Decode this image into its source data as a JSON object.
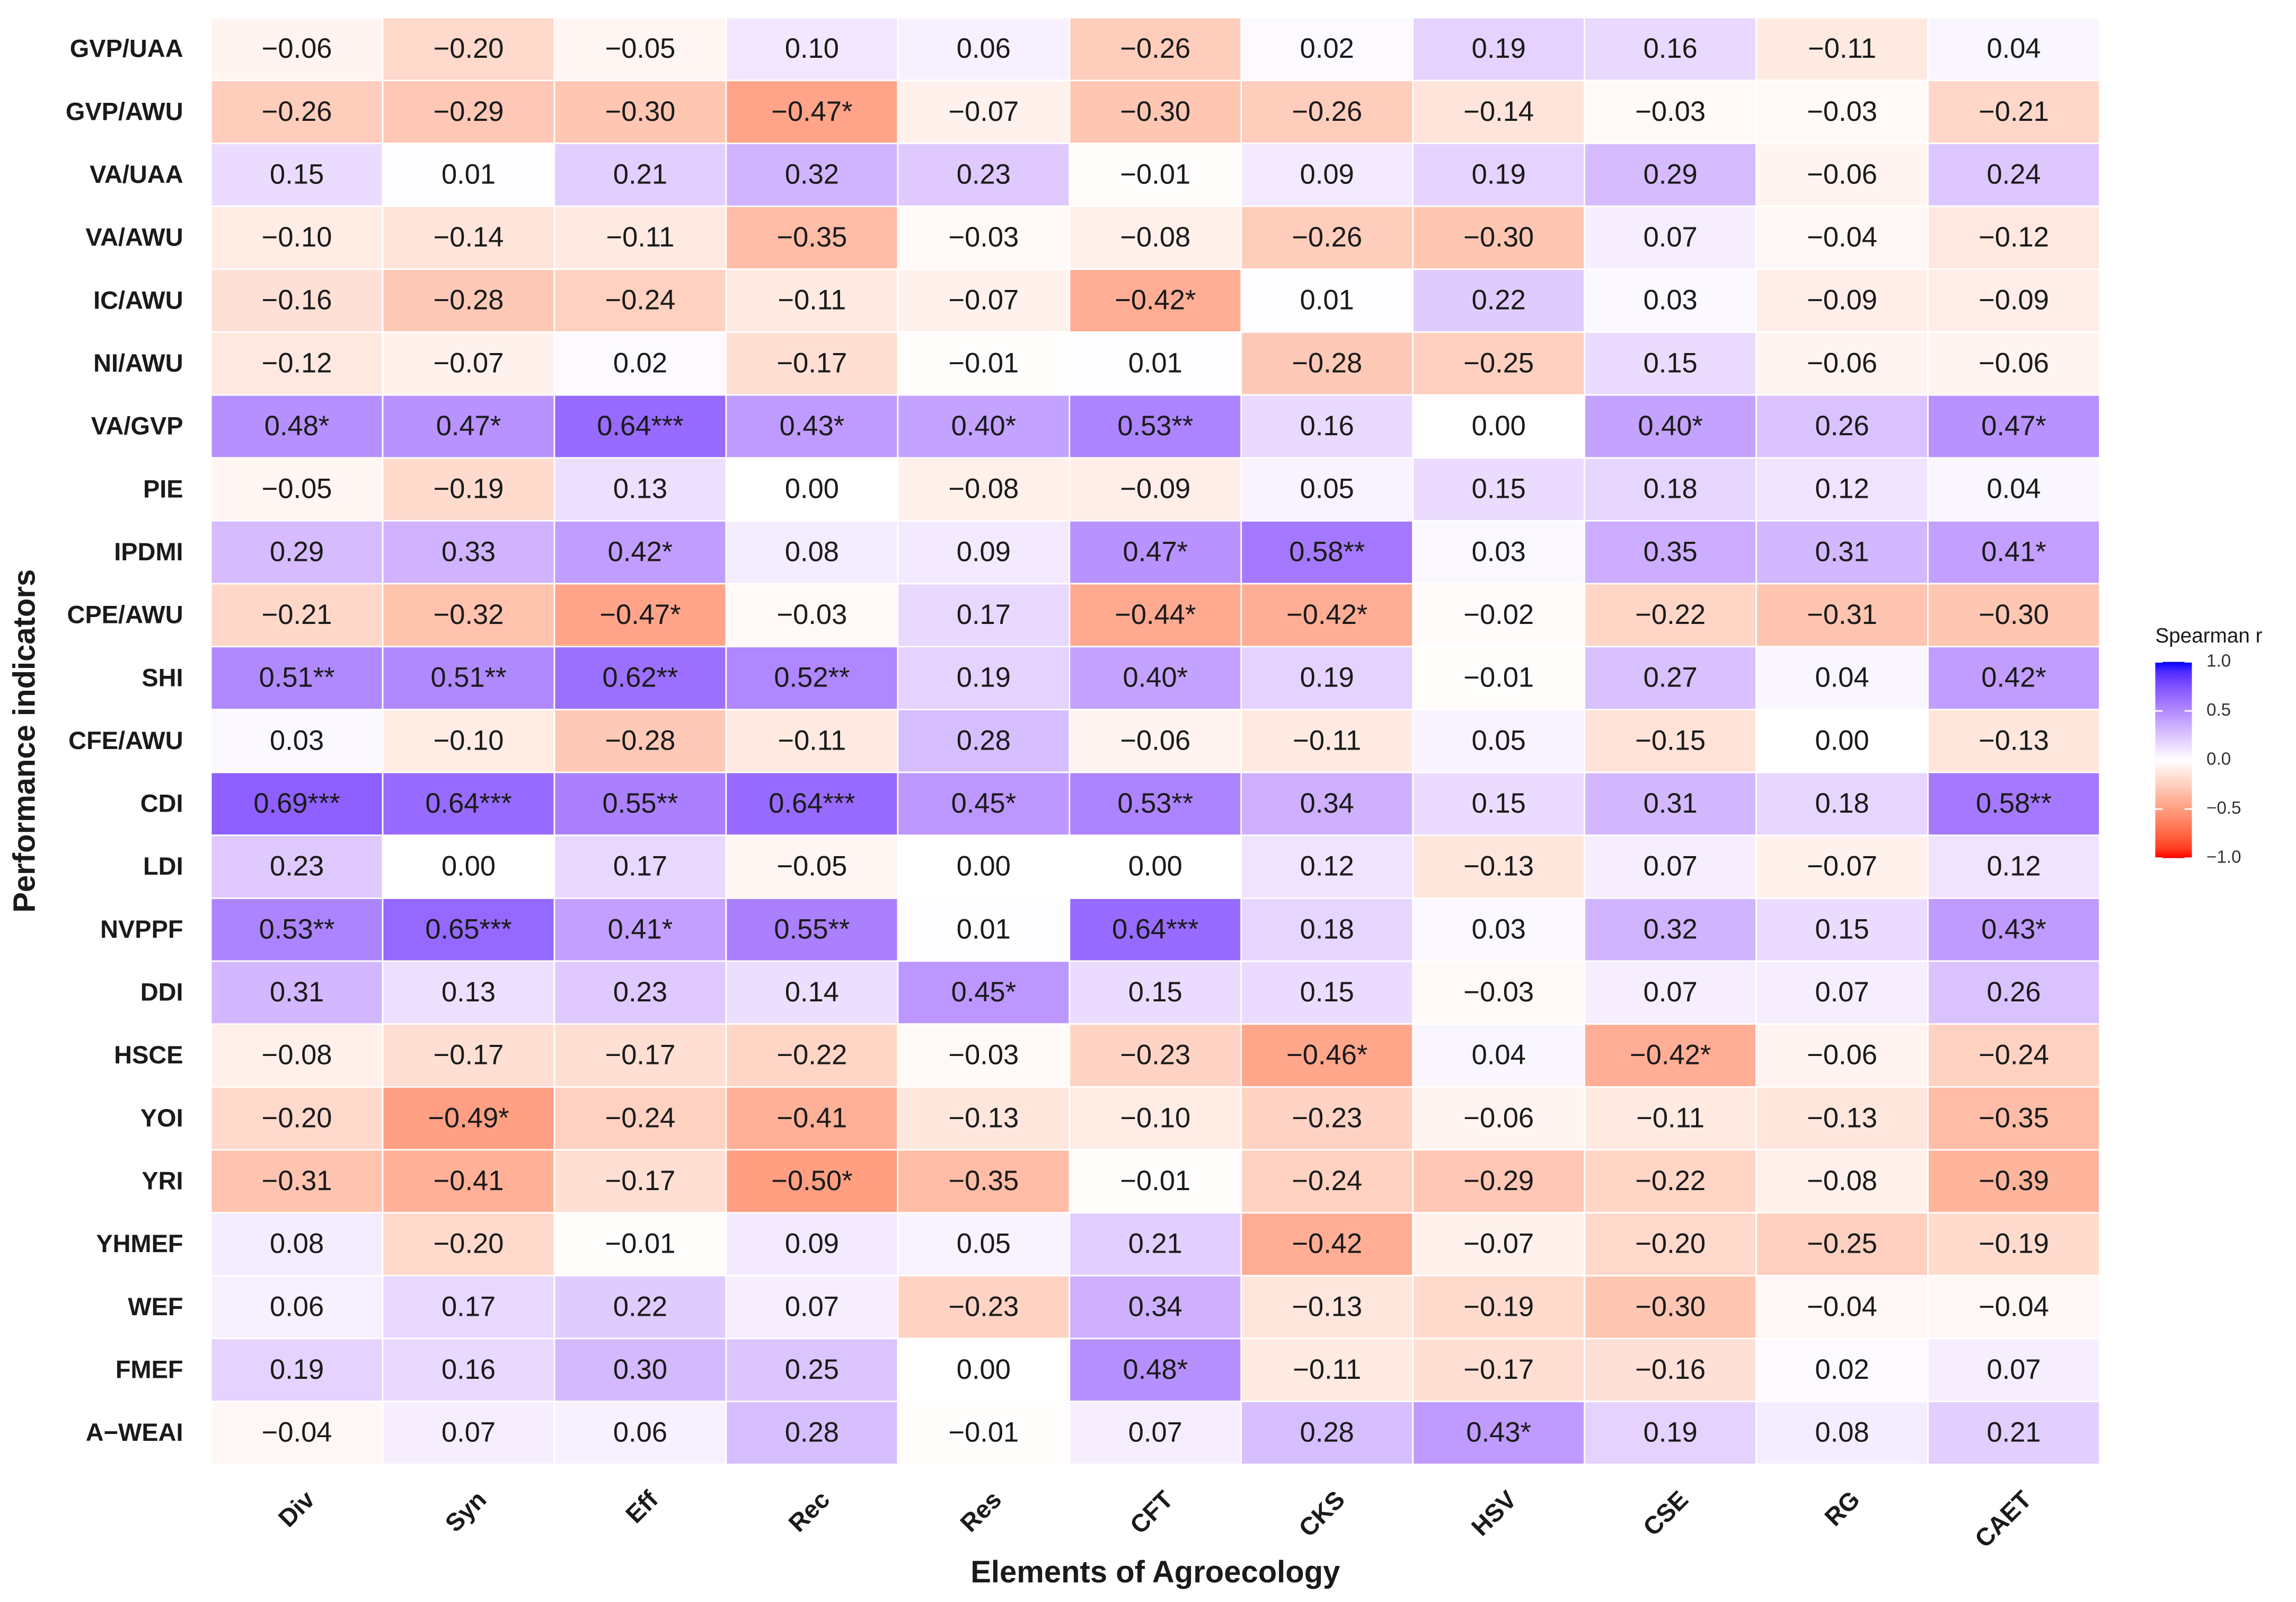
{
  "chart_data": {
    "type": "heatmap",
    "x_label": "Elements of Agroecology",
    "y_label": "Performance indicators",
    "x_categories": [
      "Div",
      "Syn",
      "Eff",
      "Rec",
      "Res",
      "CFT",
      "CKS",
      "HSV",
      "CSE",
      "RG",
      "CAET"
    ],
    "y_categories": [
      "GVP/UAA",
      "GVP/AWU",
      "VA/UAA",
      "VA/AWU",
      "IC/AWU",
      "NI/AWU",
      "VA/GVP",
      "PIE",
      "IPDMI",
      "CPE/AWU",
      "SHI",
      "CFE/AWU",
      "CDI",
      "LDI",
      "NVPPF",
      "DDI",
      "HSCE",
      "YOI",
      "YRI",
      "YHMEF",
      "WEF",
      "FMEF",
      "A−WEAI"
    ],
    "values": [
      [
        -0.06,
        -0.2,
        -0.05,
        0.1,
        0.06,
        -0.26,
        0.02,
        0.19,
        0.16,
        -0.11,
        0.04
      ],
      [
        -0.26,
        -0.29,
        -0.3,
        -0.47,
        -0.07,
        -0.3,
        -0.26,
        -0.14,
        -0.03,
        -0.03,
        -0.21
      ],
      [
        0.15,
        0.01,
        0.21,
        0.32,
        0.23,
        -0.01,
        0.09,
        0.19,
        0.29,
        -0.06,
        0.24
      ],
      [
        -0.1,
        -0.14,
        -0.11,
        -0.35,
        -0.03,
        -0.08,
        -0.26,
        -0.3,
        0.07,
        -0.04,
        -0.12
      ],
      [
        -0.16,
        -0.28,
        -0.24,
        -0.11,
        -0.07,
        -0.42,
        0.01,
        0.22,
        0.03,
        -0.09,
        -0.09
      ],
      [
        -0.12,
        -0.07,
        0.02,
        -0.17,
        -0.01,
        0.01,
        -0.28,
        -0.25,
        0.15,
        -0.06,
        -0.06
      ],
      [
        0.48,
        0.47,
        0.64,
        0.43,
        0.4,
        0.53,
        0.16,
        0.0,
        0.4,
        0.26,
        0.47
      ],
      [
        -0.05,
        -0.19,
        0.13,
        0.0,
        -0.08,
        -0.09,
        0.05,
        0.15,
        0.18,
        0.12,
        0.04
      ],
      [
        0.29,
        0.33,
        0.42,
        0.08,
        0.09,
        0.47,
        0.58,
        0.03,
        0.35,
        0.31,
        0.41
      ],
      [
        -0.21,
        -0.32,
        -0.47,
        -0.03,
        0.17,
        -0.44,
        -0.42,
        -0.02,
        -0.22,
        -0.31,
        -0.3
      ],
      [
        0.51,
        0.51,
        0.62,
        0.52,
        0.19,
        0.4,
        0.19,
        -0.01,
        0.27,
        0.04,
        0.42
      ],
      [
        0.03,
        -0.1,
        -0.28,
        -0.11,
        0.28,
        -0.06,
        -0.11,
        0.05,
        -0.15,
        0.0,
        -0.13
      ],
      [
        0.69,
        0.64,
        0.55,
        0.64,
        0.45,
        0.53,
        0.34,
        0.15,
        0.31,
        0.18,
        0.58
      ],
      [
        0.23,
        0.0,
        0.17,
        -0.05,
        0.0,
        0.0,
        0.12,
        -0.13,
        0.07,
        -0.07,
        0.12
      ],
      [
        0.53,
        0.65,
        0.41,
        0.55,
        0.01,
        0.64,
        0.18,
        0.03,
        0.32,
        0.15,
        0.43
      ],
      [
        0.31,
        0.13,
        0.23,
        0.14,
        0.45,
        0.15,
        0.15,
        -0.03,
        0.07,
        0.07,
        0.26
      ],
      [
        -0.08,
        -0.17,
        -0.17,
        -0.22,
        -0.03,
        -0.23,
        -0.46,
        0.04,
        -0.42,
        -0.06,
        -0.24
      ],
      [
        -0.2,
        -0.49,
        -0.24,
        -0.41,
        -0.13,
        -0.1,
        -0.23,
        -0.06,
        -0.11,
        -0.13,
        -0.35
      ],
      [
        -0.31,
        -0.41,
        -0.17,
        -0.5,
        -0.35,
        -0.01,
        -0.24,
        -0.29,
        -0.22,
        -0.08,
        -0.39
      ],
      [
        0.08,
        -0.2,
        -0.01,
        0.09,
        0.05,
        0.21,
        -0.42,
        -0.07,
        -0.2,
        -0.25,
        -0.19
      ],
      [
        0.06,
        0.17,
        0.22,
        0.07,
        -0.23,
        0.34,
        -0.13,
        -0.19,
        -0.3,
        -0.04,
        -0.04
      ],
      [
        0.19,
        0.16,
        0.3,
        0.25,
        0.0,
        0.48,
        -0.11,
        -0.17,
        -0.16,
        0.02,
        0.07
      ],
      [
        -0.04,
        0.07,
        0.06,
        0.28,
        -0.01,
        0.07,
        0.28,
        0.43,
        0.19,
        0.08,
        0.21
      ]
    ],
    "value_labels": [
      [
        "−0.06",
        "−0.20",
        "−0.05",
        "0.10",
        "0.06",
        "−0.26",
        "0.02",
        "0.19",
        "0.16",
        "−0.11",
        "0.04"
      ],
      [
        "−0.26",
        "−0.29",
        "−0.30",
        "−0.47*",
        "−0.07",
        "−0.30",
        "−0.26",
        "−0.14",
        "−0.03",
        "−0.03",
        "−0.21"
      ],
      [
        "0.15",
        "0.01",
        "0.21",
        "0.32",
        "0.23",
        "−0.01",
        "0.09",
        "0.19",
        "0.29",
        "−0.06",
        "0.24"
      ],
      [
        "−0.10",
        "−0.14",
        "−0.11",
        "−0.35",
        "−0.03",
        "−0.08",
        "−0.26",
        "−0.30",
        "0.07",
        "−0.04",
        "−0.12"
      ],
      [
        "−0.16",
        "−0.28",
        "−0.24",
        "−0.11",
        "−0.07",
        "−0.42*",
        "0.01",
        "0.22",
        "0.03",
        "−0.09",
        "−0.09"
      ],
      [
        "−0.12",
        "−0.07",
        "0.02",
        "−0.17",
        "−0.01",
        "0.01",
        "−0.28",
        "−0.25",
        "0.15",
        "−0.06",
        "−0.06"
      ],
      [
        "0.48*",
        "0.47*",
        "0.64***",
        "0.43*",
        "0.40*",
        "0.53**",
        "0.16",
        "0.00",
        "0.40*",
        "0.26",
        "0.47*"
      ],
      [
        "−0.05",
        "−0.19",
        "0.13",
        "0.00",
        "−0.08",
        "−0.09",
        "0.05",
        "0.15",
        "0.18",
        "0.12",
        "0.04"
      ],
      [
        "0.29",
        "0.33",
        "0.42*",
        "0.08",
        "0.09",
        "0.47*",
        "0.58**",
        "0.03",
        "0.35",
        "0.31",
        "0.41*"
      ],
      [
        "−0.21",
        "−0.32",
        "−0.47*",
        "−0.03",
        "0.17",
        "−0.44*",
        "−0.42*",
        "−0.02",
        "−0.22",
        "−0.31",
        "−0.30"
      ],
      [
        "0.51**",
        "0.51**",
        "0.62**",
        "0.52**",
        "0.19",
        "0.40*",
        "0.19",
        "−0.01",
        "0.27",
        "0.04",
        "0.42*"
      ],
      [
        "0.03",
        "−0.10",
        "−0.28",
        "−0.11",
        "0.28",
        "−0.06",
        "−0.11",
        "0.05",
        "−0.15",
        "0.00",
        "−0.13"
      ],
      [
        "0.69***",
        "0.64***",
        "0.55**",
        "0.64***",
        "0.45*",
        "0.53**",
        "0.34",
        "0.15",
        "0.31",
        "0.18",
        "0.58**"
      ],
      [
        "0.23",
        "0.00",
        "0.17",
        "−0.05",
        "0.00",
        "0.00",
        "0.12",
        "−0.13",
        "0.07",
        "−0.07",
        "0.12"
      ],
      [
        "0.53**",
        "0.65***",
        "0.41*",
        "0.55**",
        "0.01",
        "0.64***",
        "0.18",
        "0.03",
        "0.32",
        "0.15",
        "0.43*"
      ],
      [
        "0.31",
        "0.13",
        "0.23",
        "0.14",
        "0.45*",
        "0.15",
        "0.15",
        "−0.03",
        "0.07",
        "0.07",
        "0.26"
      ],
      [
        "−0.08",
        "−0.17",
        "−0.17",
        "−0.22",
        "−0.03",
        "−0.23",
        "−0.46*",
        "0.04",
        "−0.42*",
        "−0.06",
        "−0.24"
      ],
      [
        "−0.20",
        "−0.49*",
        "−0.24",
        "−0.41",
        "−0.13",
        "−0.10",
        "−0.23",
        "−0.06",
        "−0.11",
        "−0.13",
        "−0.35"
      ],
      [
        "−0.31",
        "−0.41",
        "−0.17",
        "−0.50*",
        "−0.35",
        "−0.01",
        "−0.24",
        "−0.29",
        "−0.22",
        "−0.08",
        "−0.39"
      ],
      [
        "0.08",
        "−0.20",
        "−0.01",
        "0.09",
        "0.05",
        "0.21",
        "−0.42",
        "−0.07",
        "−0.20",
        "−0.25",
        "−0.19"
      ],
      [
        "0.06",
        "0.17",
        "0.22",
        "0.07",
        "−0.23",
        "0.34",
        "−0.13",
        "−0.19",
        "−0.30",
        "−0.04",
        "−0.04"
      ],
      [
        "0.19",
        "0.16",
        "0.30",
        "0.25",
        "0.00",
        "0.48*",
        "−0.11",
        "−0.17",
        "−0.16",
        "0.02",
        "0.07"
      ],
      [
        "−0.04",
        "0.07",
        "0.06",
        "0.28",
        "−0.01",
        "0.07",
        "0.28",
        "0.43*",
        "0.19",
        "0.08",
        "0.21"
      ]
    ],
    "legend_title": "Spearman r",
    "legend_position": "right",
    "colorbar_lim": [
      -1,
      1
    ],
    "colorbar_ticks": [
      {
        "value": 1,
        "label": "1.0"
      },
      {
        "value": 0.5,
        "label": "0.5"
      },
      {
        "value": 0,
        "label": "0.0"
      },
      {
        "value": -0.5,
        "label": "−0.5"
      },
      {
        "value": -1,
        "label": "−1.0"
      }
    ],
    "colors": {
      "low": "#ff0000",
      "mid": "#ffffff",
      "high": "#0000ff"
    }
  }
}
